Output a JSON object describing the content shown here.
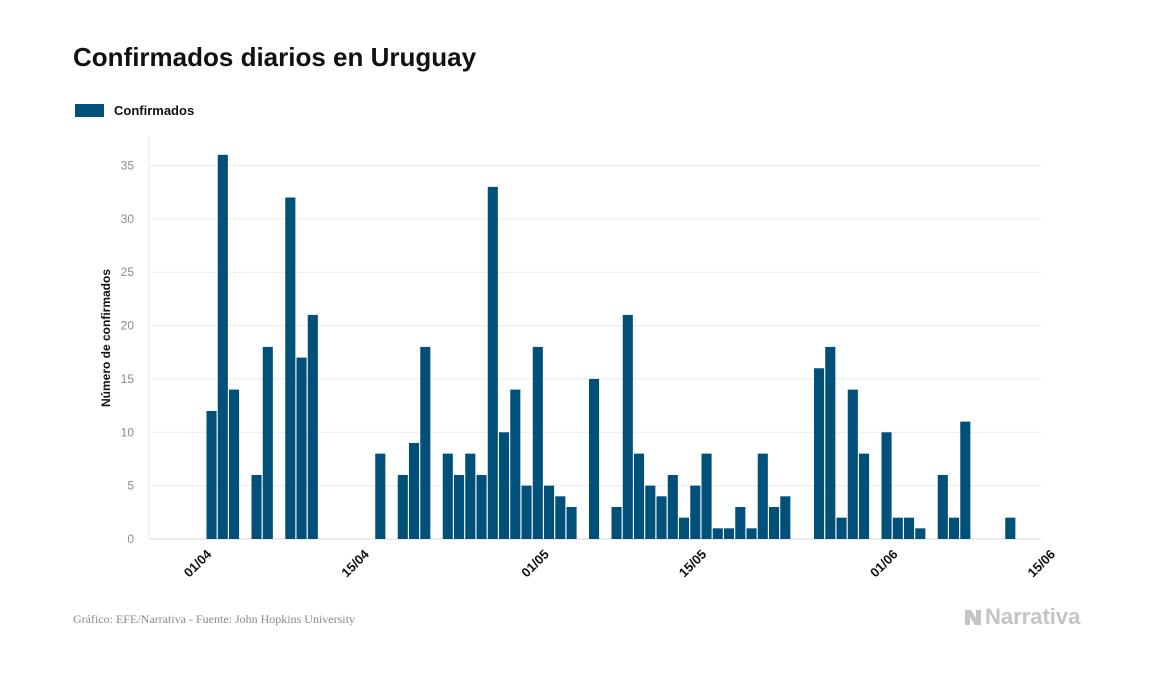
{
  "header": {
    "title": "Confirmados diarios en Uruguay"
  },
  "legend": {
    "label": "Confirmados",
    "color": "#00507a"
  },
  "footer": {
    "source": "Gráfico: EFE/Narrativa - Fuente: John Hopkins University",
    "brand": "Narrativa"
  },
  "chart_data": {
    "type": "bar",
    "title": "Confirmados diarios en Uruguay",
    "xlabel": "",
    "ylabel": "Número de confirmados",
    "ylim": [
      0,
      36
    ],
    "yticks": [
      0,
      5,
      10,
      15,
      20,
      25,
      30,
      35
    ],
    "grid": true,
    "legend_position": "top-left",
    "color": "#00507a",
    "series": [
      {
        "name": "Confirmados",
        "values": [
          0,
          0,
          12,
          36,
          14,
          0,
          6,
          18,
          0,
          32,
          17,
          21,
          0,
          0,
          0,
          0,
          0,
          8,
          0,
          6,
          9,
          18,
          0,
          8,
          6,
          8,
          6,
          33,
          10,
          14,
          5,
          18,
          5,
          4,
          3,
          0,
          15,
          0,
          3,
          21,
          8,
          5,
          4,
          6,
          2,
          5,
          8,
          1,
          1,
          3,
          1,
          8,
          3,
          4,
          0,
          0,
          16,
          18,
          2,
          14,
          8,
          0,
          10,
          2,
          2,
          1,
          0,
          6,
          2,
          11,
          0,
          0,
          0,
          2,
          0,
          0,
          0,
          0,
          0
        ]
      }
    ],
    "x_tick_labels": [
      {
        "label": "01/04",
        "index": 1
      },
      {
        "label": "15/04",
        "index": 15
      },
      {
        "label": "01/05",
        "index": 31
      },
      {
        "label": "15/05",
        "index": 45
      },
      {
        "label": "01/06",
        "index": 62
      },
      {
        "label": "15/06",
        "index": 76
      }
    ]
  }
}
